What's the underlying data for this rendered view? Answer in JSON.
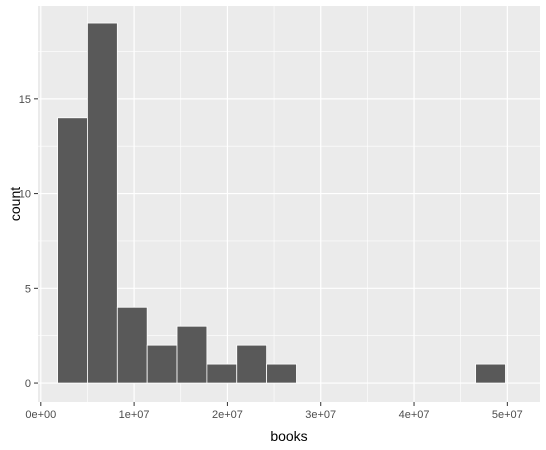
{
  "chart_data": {
    "type": "bar",
    "subtype": "histogram",
    "title": "",
    "xlabel": "books",
    "ylabel": "count",
    "xlim": [
      -300000,
      53500000
    ],
    "ylim": [
      -1.0,
      19.9
    ],
    "x_ticks": [
      {
        "value": 0,
        "label": "0e+00"
      },
      {
        "value": 10000000,
        "label": "1e+07"
      },
      {
        "value": 20000000,
        "label": "2e+07"
      },
      {
        "value": 30000000,
        "label": "3e+07"
      },
      {
        "value": 40000000,
        "label": "4e+07"
      },
      {
        "value": 50000000,
        "label": "5e+07"
      }
    ],
    "y_ticks": [
      {
        "value": 0,
        "label": "0"
      },
      {
        "value": 5,
        "label": "5"
      },
      {
        "value": 10,
        "label": "10"
      },
      {
        "value": 15,
        "label": "15"
      }
    ],
    "bins": [
      {
        "x0": 1800000,
        "x1": 5000000,
        "count": 14
      },
      {
        "x0": 5000000,
        "x1": 8200000,
        "count": 19
      },
      {
        "x0": 8200000,
        "x1": 11400000,
        "count": 4
      },
      {
        "x0": 11400000,
        "x1": 14600000,
        "count": 2
      },
      {
        "x0": 14600000,
        "x1": 17800000,
        "count": 3
      },
      {
        "x0": 17800000,
        "x1": 21000000,
        "count": 1
      },
      {
        "x0": 21000000,
        "x1": 24200000,
        "count": 2
      },
      {
        "x0": 24200000,
        "x1": 27400000,
        "count": 1
      },
      {
        "x0": 27400000,
        "x1": 30600000,
        "count": 0
      },
      {
        "x0": 30600000,
        "x1": 33800000,
        "count": 0
      },
      {
        "x0": 33800000,
        "x1": 37000000,
        "count": 0
      },
      {
        "x0": 37000000,
        "x1": 40200000,
        "count": 0
      },
      {
        "x0": 40200000,
        "x1": 43400000,
        "count": 0
      },
      {
        "x0": 43400000,
        "x1": 46600000,
        "count": 0
      },
      {
        "x0": 46600000,
        "x1": 49800000,
        "count": 1
      }
    ],
    "grid": true,
    "colors": {
      "panel": "#ebebeb",
      "grid": "#ffffff",
      "bar_fill": "#595959",
      "bar_stroke": "#ffffff",
      "tick": "#333333"
    }
  }
}
